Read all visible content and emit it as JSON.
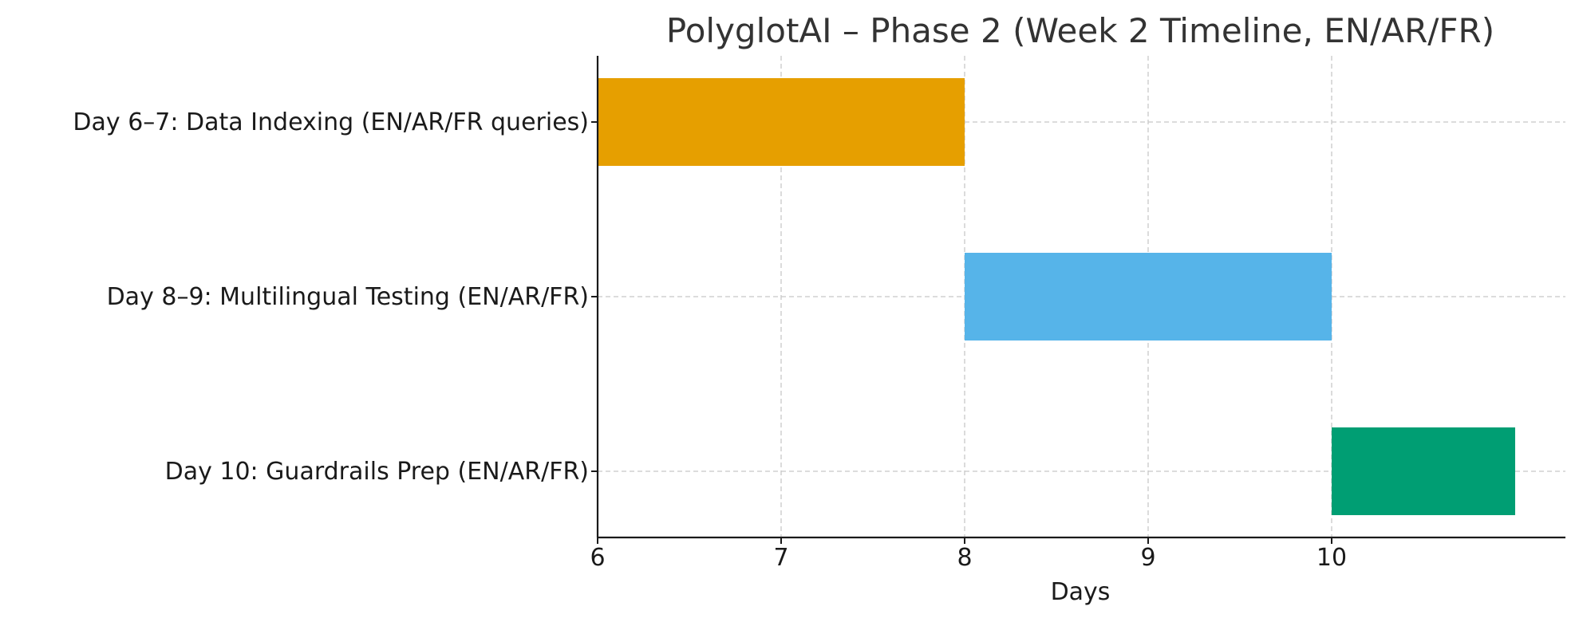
{
  "chart_data": {
    "type": "bar",
    "orientation": "horizontal-gantt",
    "title": "PolyglotAI – Phase 2 (Week 2 Timeline, EN/AR/FR)",
    "xlabel": "Days",
    "ylabel": "",
    "xlim": [
      6,
      11.27
    ],
    "xticks": [
      "6",
      "7",
      "8",
      "9",
      "10"
    ],
    "grid": true,
    "tasks": [
      {
        "label": "Day 6–7: Data Indexing (EN/AR/FR queries)",
        "start": 6,
        "end": 8,
        "color": "#E69F00"
      },
      {
        "label": "Day 8–9: Multilingual Testing (EN/AR/FR)",
        "start": 8,
        "end": 10,
        "color": "#56B4E9"
      },
      {
        "label": "Day 10: Guardrails Prep (EN/AR/FR)",
        "start": 10,
        "end": 11,
        "color": "#009E73"
      }
    ]
  }
}
